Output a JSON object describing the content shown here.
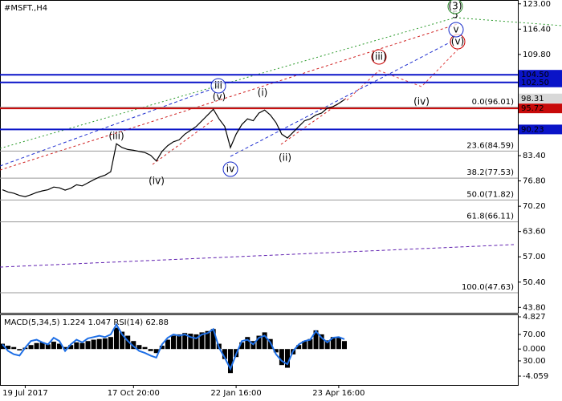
{
  "chart_data": [
    {
      "type": "line",
      "title": "#MSFT.,H4",
      "categories": [
        null,
        null,
        null,
        null,
        "19 Jul 2017",
        null,
        null,
        null,
        null,
        null,
        null,
        null,
        null,
        null,
        null,
        null,
        null,
        null,
        null,
        null,
        null,
        null,
        null,
        "17 Oct 20:00",
        null,
        null,
        null,
        null,
        null,
        null,
        null,
        null,
        null,
        null,
        null,
        null,
        null,
        null,
        null,
        null,
        null,
        "22 Jan 16:00",
        null,
        null,
        null,
        null,
        null,
        null,
        null,
        null,
        null,
        null,
        null,
        null,
        null,
        null,
        null,
        null,
        null,
        "23 Apr 16:00",
        null
      ],
      "values": [
        74.5,
        73.9,
        73.6,
        73.0,
        72.7,
        73.2,
        73.8,
        74.2,
        74.5,
        75.2,
        75.0,
        74.4,
        74.9,
        75.8,
        75.5,
        76.3,
        77.1,
        77.8,
        78.3,
        79.2,
        86.5,
        85.5,
        85.0,
        84.8,
        84.5,
        84.2,
        83.5,
        82.0,
        84.5,
        86.0,
        87.0,
        87.5,
        89.0,
        90.0,
        91.0,
        92.5,
        94.0,
        95.5,
        93.0,
        91.0,
        85.5,
        89.0,
        91.5,
        93.0,
        92.5,
        94.5,
        95.3,
        94.0,
        92.0,
        89.0,
        88.0,
        89.5,
        91.0,
        92.5,
        93.0,
        94.0,
        94.5,
        95.8,
        96.2,
        97.0,
        98.0
      ],
      "color": "#000000",
      "ylim": [
        42.4,
        124.0
      ],
      "yticks": [
        {
          "value": 123,
          "label": "123.00"
        },
        {
          "value": 116.4,
          "label": "116.40"
        },
        {
          "value": 109.8,
          "label": "109.80"
        },
        {
          "value": 83.4,
          "label": "83.40"
        },
        {
          "value": 76.8,
          "label": "76.80"
        },
        {
          "value": 70.2,
          "label": "70.20"
        },
        {
          "value": 63.6,
          "label": "63.60"
        },
        {
          "value": 57,
          "label": "57.00"
        },
        {
          "value": 50.4,
          "label": "50.40"
        },
        {
          "value": 43.8,
          "label": "43.80"
        }
      ],
      "levels": [
        {
          "value": 104.5,
          "label": "104.50",
          "color": "#0a14c8"
        },
        {
          "value": 102.5,
          "label": "102.50",
          "color": "#0a14c8"
        },
        {
          "value": 95.72,
          "label": "95.72",
          "color": "#c80a0a"
        },
        {
          "value": 90.23,
          "label": "90.23",
          "color": "#0a14c8"
        }
      ],
      "price_label": {
        "value": 98.31,
        "label": "98.31"
      },
      "fib_levels": [
        {
          "value": 96.01,
          "label": "0.0(96.01)"
        },
        {
          "value": 84.59,
          "label": "23.6(84.59)"
        },
        {
          "value": 77.53,
          "label": "38.2(77.53)"
        },
        {
          "value": 71.82,
          "label": "50.0(71.82)"
        },
        {
          "value": 66.11,
          "label": "61.8(66.11)"
        },
        {
          "value": 47.63,
          "label": "100.0(47.63)"
        }
      ],
      "annotations": [
        {
          "text": "(iii)",
          "color": "#cc0000"
        },
        {
          "text": "(iv)",
          "color": "#cc0000"
        },
        {
          "text": "(v)",
          "color": "#cc0000"
        },
        {
          "text": "iii",
          "color": "#1428c8",
          "circled": true
        },
        {
          "text": "iv",
          "color": "#1428c8",
          "circled": true
        },
        {
          "text": "(i)",
          "color": "#cc0000"
        },
        {
          "text": "(ii)",
          "color": "#cc0000"
        },
        {
          "text": "(iii)",
          "color": "#cc0000",
          "circled": true
        },
        {
          "text": "(iv)",
          "color": "#cc0000"
        },
        {
          "text": "(v)",
          "color": "#cc0000",
          "circled": true
        },
        {
          "text": "v",
          "color": "#1428c8",
          "circled": true
        },
        {
          "text": "5",
          "color": "#cc0000"
        },
        {
          "text": "(3)",
          "color": "#2a8a2a",
          "circled": true
        }
      ]
    },
    {
      "type": "bar",
      "title": "MACD(5,34,5) 1.224 1.047 RSI(14) 62.88",
      "series": [
        {
          "color": "#000000",
          "values": [
            0.8,
            0.5,
            0.3,
            -0.2,
            0.2,
            0.6,
            0.9,
            1.0,
            0.7,
            1.1,
            0.8,
            0.3,
            0.6,
            1.0,
            0.9,
            1.2,
            1.4,
            1.5,
            1.6,
            1.8,
            3.2,
            2.6,
            2.0,
            1.2,
            0.6,
            0.3,
            -0.3,
            -0.6,
            0.5,
            1.4,
            2.0,
            2.2,
            2.4,
            2.3,
            2.2,
            2.5,
            2.7,
            3.0,
            0.8,
            -1.5,
            -3.6,
            -1.2,
            1.0,
            1.8,
            1.2,
            2.0,
            2.5,
            1.5,
            -0.5,
            -2.4,
            -2.8,
            -0.8,
            0.6,
            1.2,
            1.5,
            2.8,
            2.2,
            1.3,
            1.8,
            1.7,
            1.2
          ]
        },
        {
          "type": "line",
          "axis": "y2",
          "color": "#1e6fe6",
          "values": [
            55,
            45,
            40,
            38,
            50,
            60,
            62,
            58,
            55,
            65,
            60,
            45,
            55,
            62,
            58,
            64,
            66,
            68,
            66,
            70,
            85,
            70,
            60,
            52,
            45,
            42,
            38,
            35,
            55,
            65,
            70,
            68,
            70,
            66,
            64,
            70,
            72,
            78,
            50,
            35,
            18,
            40,
            60,
            62,
            55,
            65,
            68,
            58,
            40,
            30,
            25,
            45,
            55,
            60,
            62,
            75,
            65,
            58,
            65,
            66,
            62.88
          ]
        }
      ],
      "ylim": [
        -5.38,
        5.19
      ],
      "yticks": [
        4.827,
        {
          "value": 0,
          "label": "0.000"
        },
        -4.059
      ],
      "y2lim": [
        -6.4,
        100.3
      ],
      "y2ticks": [
        {
          "value": 70,
          "label": "70.00"
        },
        {
          "value": 30,
          "label": "30.00"
        }
      ]
    }
  ]
}
